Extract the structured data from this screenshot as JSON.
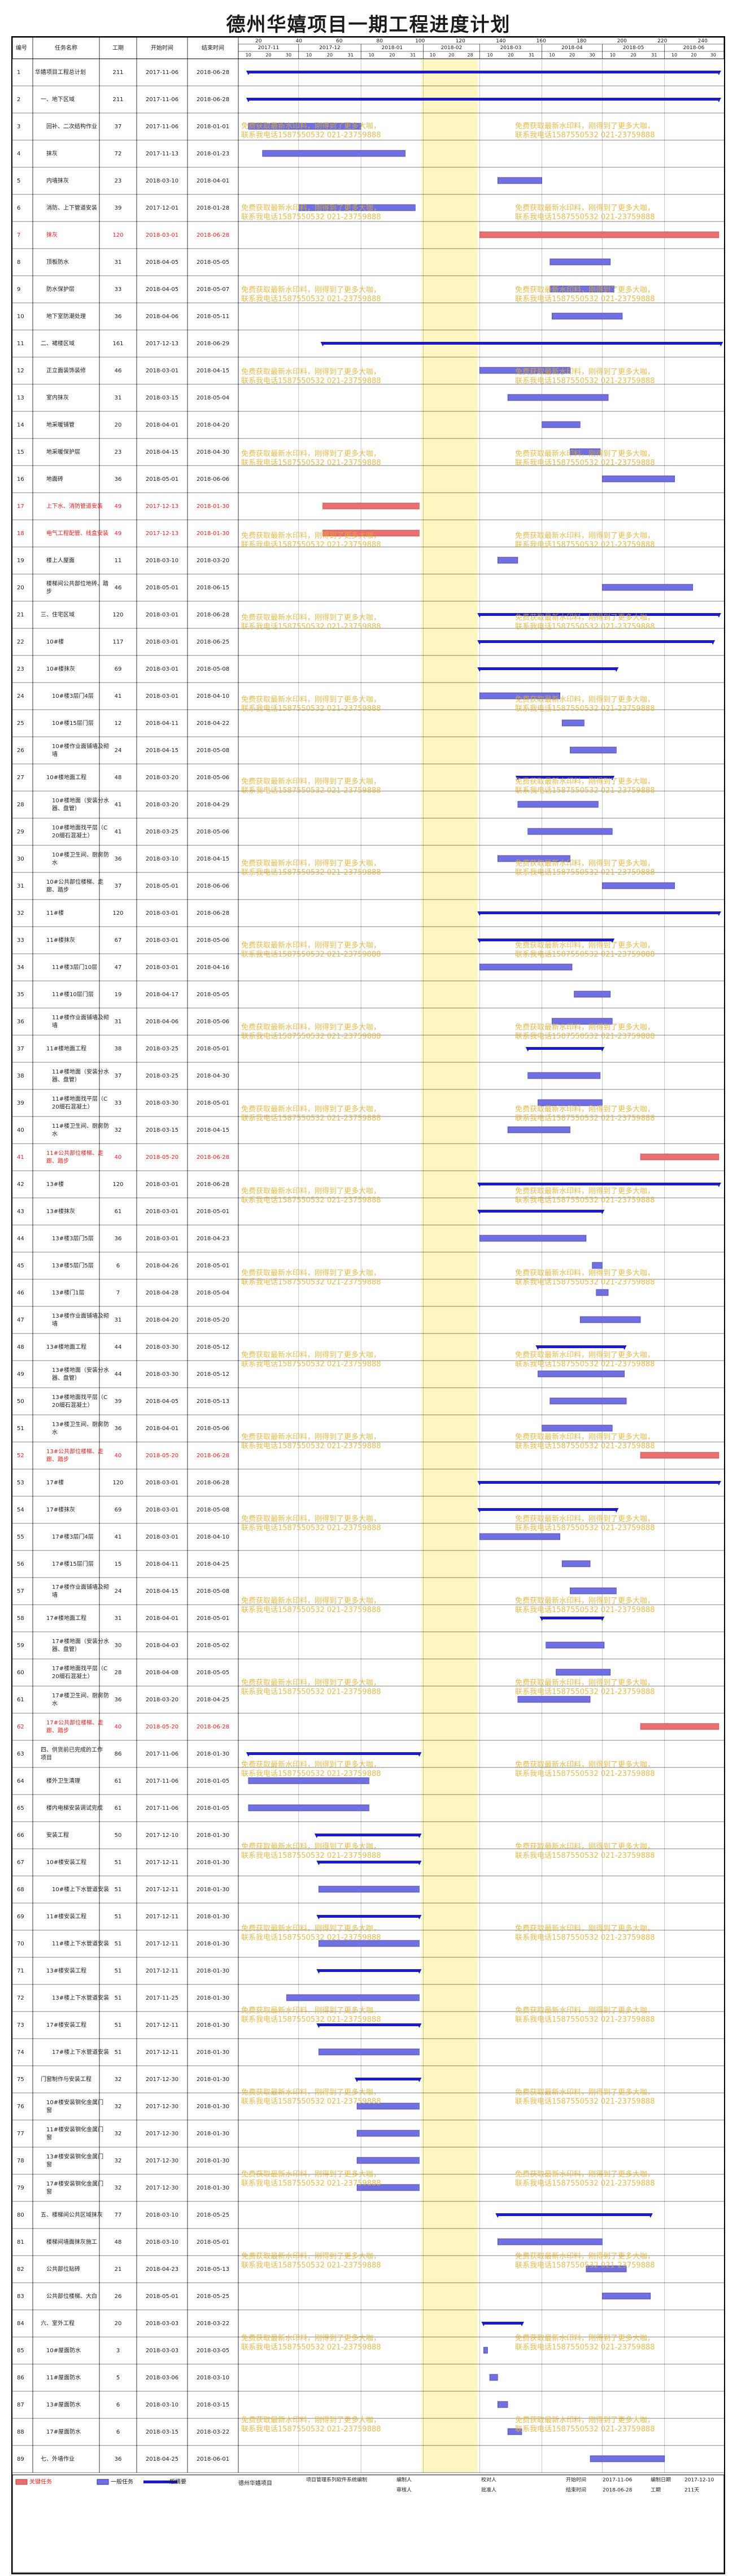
{
  "title": "德州华嬉项目一期工程进度计划",
  "headers": {
    "no": "编号",
    "name": "任务名称",
    "days": "工期",
    "start": "开始时间",
    "end": "结束时间"
  },
  "timescale": {
    "day_ticks": [
      "20",
      "40",
      "60",
      "80",
      "100",
      "120",
      "140",
      "160",
      "180",
      "200",
      "220",
      "240"
    ],
    "months": [
      "2017-11",
      "2017-12",
      "2018-01",
      "2018-02",
      "2018-03",
      "2018-04",
      "2018-05",
      "2018-06"
    ],
    "week_ticks": [
      "10",
      "20",
      "30",
      "10",
      "20",
      "31",
      "10",
      "20",
      "31",
      "10",
      "20",
      "28",
      "10",
      "20",
      "31",
      "10",
      "20",
      "30",
      "10",
      "20",
      "31",
      "10",
      "20",
      "30"
    ]
  },
  "watermark_text": [
    "免费获取最新水印料，刚得到了更多大咖，",
    "联系我电话1587550532 021-23759888"
  ],
  "colors": {
    "normal": "#7070e0",
    "critical": "#e87070",
    "summary": "#1a1acc",
    "holiday": "#fff6c2",
    "red_text": "#e02020"
  },
  "chart_data": {
    "type": "gantt",
    "title": "德州华嬉项目一期工程进度计划",
    "tasks": [
      {
        "no": "1",
        "name": "华嬉项目工程总计划",
        "days": "211",
        "start": "2017-11-06",
        "end": "2018-06-28",
        "kind": "summary",
        "level": 0
      },
      {
        "no": "2",
        "name": "一、地下区域",
        "days": "211",
        "start": "2017-11-06",
        "end": "2018-06-28",
        "kind": "summary",
        "level": 1
      },
      {
        "no": "3",
        "name": "回补、二次结构作业",
        "days": "37",
        "start": "2017-11-06",
        "end": "2018-01-01",
        "kind": "normal",
        "level": 2
      },
      {
        "no": "4",
        "name": "抹灰",
        "days": "72",
        "start": "2017-11-13",
        "end": "2018-01-23",
        "kind": "normal",
        "level": 2
      },
      {
        "no": "5",
        "name": "内墙抹灰",
        "days": "23",
        "start": "2018-03-10",
        "end": "2018-04-01",
        "kind": "normal",
        "level": 2
      },
      {
        "no": "6",
        "name": "消防、上下管道安装",
        "days": "39",
        "start": "2017-12-01",
        "end": "2018-01-28",
        "kind": "normal",
        "level": 2
      },
      {
        "no": "7",
        "name": "抹灰",
        "days": "120",
        "start": "2018-03-01",
        "end": "2018-06-28",
        "kind": "critical",
        "level": 2
      },
      {
        "no": "8",
        "name": "顶板防水",
        "days": "31",
        "start": "2018-04-05",
        "end": "2018-05-05",
        "kind": "normal",
        "level": 2
      },
      {
        "no": "9",
        "name": "防水保护层",
        "days": "33",
        "start": "2018-04-05",
        "end": "2018-05-07",
        "kind": "normal",
        "level": 2
      },
      {
        "no": "10",
        "name": "地下室防潮处理",
        "days": "36",
        "start": "2018-04-06",
        "end": "2018-05-11",
        "kind": "normal",
        "level": 2
      },
      {
        "no": "11",
        "name": "二、裙楼区域",
        "days": "161",
        "start": "2017-12-13",
        "end": "2018-06-29",
        "kind": "summary",
        "level": 1
      },
      {
        "no": "12",
        "name": "正立面装饰装修",
        "days": "46",
        "start": "2018-03-01",
        "end": "2018-04-15",
        "kind": "normal",
        "level": 2
      },
      {
        "no": "13",
        "name": "室内抹灰",
        "days": "31",
        "start": "2018-03-15",
        "end": "2018-05-04",
        "kind": "normal",
        "level": 2
      },
      {
        "no": "14",
        "name": "地采暖铺管",
        "days": "20",
        "start": "2018-04-01",
        "end": "2018-04-20",
        "kind": "normal",
        "level": 2
      },
      {
        "no": "15",
        "name": "地采暖保护层",
        "days": "23",
        "start": "2018-04-15",
        "end": "2018-04-30",
        "kind": "normal",
        "level": 2
      },
      {
        "no": "16",
        "name": "地面砖",
        "days": "36",
        "start": "2018-05-01",
        "end": "2018-06-06",
        "kind": "normal",
        "level": 2
      },
      {
        "no": "17",
        "name": "上下水、消防管道安装",
        "days": "49",
        "start": "2017-12-13",
        "end": "2018-01-30",
        "kind": "critical",
        "level": 2
      },
      {
        "no": "18",
        "name": "电气工程配管、线盒安装",
        "days": "49",
        "start": "2017-12-13",
        "end": "2018-01-30",
        "kind": "critical",
        "level": 2
      },
      {
        "no": "19",
        "name": "楼上人屋面",
        "days": "11",
        "start": "2018-03-10",
        "end": "2018-03-20",
        "kind": "normal",
        "level": 2
      },
      {
        "no": "20",
        "name": "楼梯间公共部位地砖、踏步",
        "days": "46",
        "start": "2018-05-01",
        "end": "2018-06-15",
        "kind": "normal",
        "level": 2
      },
      {
        "no": "21",
        "name": "三、住宅区域",
        "days": "120",
        "start": "2018-03-01",
        "end": "2018-06-28",
        "kind": "summary",
        "level": 1
      },
      {
        "no": "22",
        "name": "10#楼",
        "days": "117",
        "start": "2018-03-01",
        "end": "2018-06-25",
        "kind": "summary",
        "level": 2
      },
      {
        "no": "23",
        "name": "10#楼抹灰",
        "days": "69",
        "start": "2018-03-01",
        "end": "2018-05-08",
        "kind": "summary",
        "level": 2
      },
      {
        "no": "24",
        "name": "10#楼3层门4层",
        "days": "41",
        "start": "2018-03-01",
        "end": "2018-04-10",
        "kind": "normal",
        "level": 3
      },
      {
        "no": "25",
        "name": "10#楼15层门层",
        "days": "12",
        "start": "2018-04-11",
        "end": "2018-04-22",
        "kind": "normal",
        "level": 3
      },
      {
        "no": "26",
        "name": "10#楼作业面铺墙及砌墙",
        "days": "24",
        "start": "2018-04-15",
        "end": "2018-05-08",
        "kind": "normal",
        "level": 3
      },
      {
        "no": "27",
        "name": "10#楼地面工程",
        "days": "48",
        "start": "2018-03-20",
        "end": "2018-05-06",
        "kind": "summary",
        "level": 2
      },
      {
        "no": "28",
        "name": "10#楼地面（安装分水器、盘管）",
        "days": "41",
        "start": "2018-03-20",
        "end": "2018-04-29",
        "kind": "normal",
        "level": 3
      },
      {
        "no": "29",
        "name": "10#楼地面找平层（C20细石混凝土）",
        "days": "41",
        "start": "2018-03-25",
        "end": "2018-05-06",
        "kind": "normal",
        "level": 3
      },
      {
        "no": "30",
        "name": "10#楼卫生间、厨房防水",
        "days": "36",
        "start": "2018-03-10",
        "end": "2018-04-15",
        "kind": "normal",
        "level": 3
      },
      {
        "no": "31",
        "name": "10#公共部位楼梯、走廊、踏步",
        "days": "37",
        "start": "2018-05-01",
        "end": "2018-06-06",
        "kind": "normal",
        "level": 2
      },
      {
        "no": "32",
        "name": "11#楼",
        "days": "120",
        "start": "2018-03-01",
        "end": "2018-06-28",
        "kind": "summary",
        "level": 2
      },
      {
        "no": "33",
        "name": "11#楼抹灰",
        "days": "67",
        "start": "2018-03-01",
        "end": "2018-05-06",
        "kind": "summary",
        "level": 2
      },
      {
        "no": "34",
        "name": "11#楼3层门10层",
        "days": "47",
        "start": "2018-03-01",
        "end": "2018-04-16",
        "kind": "normal",
        "level": 3
      },
      {
        "no": "35",
        "name": "11#楼10层门层",
        "days": "19",
        "start": "2018-04-17",
        "end": "2018-05-05",
        "kind": "normal",
        "level": 3
      },
      {
        "no": "36",
        "name": "11#楼作业面铺墙及砌墙",
        "days": "31",
        "start": "2018-04-06",
        "end": "2018-05-06",
        "kind": "normal",
        "level": 3
      },
      {
        "no": "37",
        "name": "11#楼地面工程",
        "days": "38",
        "start": "2018-03-25",
        "end": "2018-05-01",
        "kind": "summary",
        "level": 2
      },
      {
        "no": "38",
        "name": "11#楼地面（安装分水器、盘管）",
        "days": "37",
        "start": "2018-03-25",
        "end": "2018-04-30",
        "kind": "normal",
        "level": 3
      },
      {
        "no": "39",
        "name": "11#楼地面找平层（C20细石混凝土）",
        "days": "33",
        "start": "2018-03-30",
        "end": "2018-05-01",
        "kind": "normal",
        "level": 3
      },
      {
        "no": "40",
        "name": "11#楼卫生间、厨房防水",
        "days": "32",
        "start": "2018-03-15",
        "end": "2018-04-15",
        "kind": "normal",
        "level": 3
      },
      {
        "no": "41",
        "name": "11#公共部位楼梯、走廊、踏步",
        "days": "40",
        "start": "2018-05-20",
        "end": "2018-06-28",
        "kind": "critical",
        "level": 2
      },
      {
        "no": "42",
        "name": "13#楼",
        "days": "120",
        "start": "2018-03-01",
        "end": "2018-06-28",
        "kind": "summary",
        "level": 2
      },
      {
        "no": "43",
        "name": "13#楼抹灰",
        "days": "61",
        "start": "2018-03-01",
        "end": "2018-05-01",
        "kind": "summary",
        "level": 2
      },
      {
        "no": "44",
        "name": "13#楼3层门5层",
        "days": "36",
        "start": "2018-03-01",
        "end": "2018-04-23",
        "kind": "normal",
        "level": 3
      },
      {
        "no": "45",
        "name": "13#楼5层门5层",
        "days": "6",
        "start": "2018-04-26",
        "end": "2018-05-01",
        "kind": "normal",
        "level": 3
      },
      {
        "no": "46",
        "name": "13#楼门1层",
        "days": "7",
        "start": "2018-04-28",
        "end": "2018-05-04",
        "kind": "normal",
        "level": 3
      },
      {
        "no": "47",
        "name": "13#楼作业面铺墙及砌墙",
        "days": "31",
        "start": "2018-04-20",
        "end": "2018-05-20",
        "kind": "normal",
        "level": 3
      },
      {
        "no": "48",
        "name": "13#楼地面工程",
        "days": "44",
        "start": "2018-03-30",
        "end": "2018-05-12",
        "kind": "summary",
        "level": 2
      },
      {
        "no": "49",
        "name": "13#楼地面（安装分水器、盘管）",
        "days": "44",
        "start": "2018-03-30",
        "end": "2018-05-12",
        "kind": "normal",
        "level": 3
      },
      {
        "no": "50",
        "name": "13#楼地面找平层（C20细石混凝土）",
        "days": "39",
        "start": "2018-04-05",
        "end": "2018-05-13",
        "kind": "normal",
        "level": 3
      },
      {
        "no": "51",
        "name": "13#楼卫生间、厨房防水",
        "days": "36",
        "start": "2018-04-01",
        "end": "2018-05-06",
        "kind": "normal",
        "level": 3
      },
      {
        "no": "52",
        "name": "13#公共部位楼梯、走廊、踏步",
        "days": "40",
        "start": "2018-05-20",
        "end": "2018-06-28",
        "kind": "critical",
        "level": 2
      },
      {
        "no": "53",
        "name": "17#楼",
        "days": "120",
        "start": "2018-03-01",
        "end": "2018-06-28",
        "kind": "summary",
        "level": 2
      },
      {
        "no": "54",
        "name": "17#楼抹灰",
        "days": "69",
        "start": "2018-03-01",
        "end": "2018-05-08",
        "kind": "summary",
        "level": 2
      },
      {
        "no": "55",
        "name": "17#楼3层门4层",
        "days": "41",
        "start": "2018-03-01",
        "end": "2018-04-10",
        "kind": "normal",
        "level": 3
      },
      {
        "no": "56",
        "name": "17#楼15层门层",
        "days": "15",
        "start": "2018-04-11",
        "end": "2018-04-25",
        "kind": "normal",
        "level": 3
      },
      {
        "no": "57",
        "name": "17#楼作业面铺墙及砌墙",
        "days": "24",
        "start": "2018-04-15",
        "end": "2018-05-08",
        "kind": "normal",
        "level": 3
      },
      {
        "no": "58",
        "name": "17#楼地面工程",
        "days": "31",
        "start": "2018-04-01",
        "end": "2018-05-01",
        "kind": "summary",
        "level": 2
      },
      {
        "no": "59",
        "name": "17#楼地面（安装分水器、盘管）",
        "days": "30",
        "start": "2018-04-03",
        "end": "2018-05-02",
        "kind": "normal",
        "level": 3
      },
      {
        "no": "60",
        "name": "17#楼地面找平层（C20细石混凝土）",
        "days": "28",
        "start": "2018-04-08",
        "end": "2018-05-05",
        "kind": "normal",
        "level": 3
      },
      {
        "no": "61",
        "name": "17#楼卫生间、厨房防水",
        "days": "36",
        "start": "2018-03-20",
        "end": "2018-04-25",
        "kind": "normal",
        "level": 3
      },
      {
        "no": "62",
        "name": "17#公共部位楼梯、走廊、踏步",
        "days": "40",
        "start": "2018-05-20",
        "end": "2018-06-28",
        "kind": "critical",
        "level": 2
      },
      {
        "no": "63",
        "name": "四、供货前已完成的工作项目",
        "days": "86",
        "start": "2017-11-06",
        "end": "2018-01-30",
        "kind": "summary",
        "level": 1
      },
      {
        "no": "64",
        "name": "楼外卫生清理",
        "days": "61",
        "start": "2017-11-06",
        "end": "2018-01-05",
        "kind": "normal",
        "level": 2
      },
      {
        "no": "65",
        "name": "楼内电梯安装调试完成",
        "days": "61",
        "start": "2017-11-06",
        "end": "2018-01-05",
        "kind": "normal",
        "level": 2
      },
      {
        "no": "66",
        "name": "安装工程",
        "days": "50",
        "start": "2017-12-10",
        "end": "2018-01-30",
        "kind": "summary",
        "level": 2
      },
      {
        "no": "67",
        "name": "10#楼安装工程",
        "days": "51",
        "start": "2017-12-11",
        "end": "2018-01-30",
        "kind": "summary",
        "level": 2
      },
      {
        "no": "68",
        "name": "10#楼上下水管道安装",
        "days": "51",
        "start": "2017-12-11",
        "end": "2018-01-30",
        "kind": "normal",
        "level": 3
      },
      {
        "no": "69",
        "name": "11#楼安装工程",
        "days": "51",
        "start": "2017-12-11",
        "end": "2018-01-30",
        "kind": "summary",
        "level": 2
      },
      {
        "no": "70",
        "name": "11#楼上下水管道安装",
        "days": "51",
        "start": "2017-12-11",
        "end": "2018-01-30",
        "kind": "normal",
        "level": 3
      },
      {
        "no": "71",
        "name": "13#楼安装工程",
        "days": "51",
        "start": "2017-12-11",
        "end": "2018-01-30",
        "kind": "summary",
        "level": 2
      },
      {
        "no": "72",
        "name": "13#楼上下水管道安装",
        "days": "51",
        "start": "2017-11-25",
        "end": "2018-01-30",
        "kind": "normal",
        "level": 3
      },
      {
        "no": "73",
        "name": "17#楼安装工程",
        "days": "51",
        "start": "2017-12-11",
        "end": "2018-01-30",
        "kind": "summary",
        "level": 2
      },
      {
        "no": "74",
        "name": "17#楼上下水管道安装",
        "days": "51",
        "start": "2017-12-11",
        "end": "2018-01-30",
        "kind": "normal",
        "level": 3
      },
      {
        "no": "75",
        "name": "门窗制作与安装工程",
        "days": "32",
        "start": "2017-12-30",
        "end": "2018-01-30",
        "kind": "summary",
        "level": 1
      },
      {
        "no": "76",
        "name": "10#楼安装钢化金属门窗",
        "days": "32",
        "start": "2017-12-30",
        "end": "2018-01-30",
        "kind": "normal",
        "level": 2
      },
      {
        "no": "77",
        "name": "11#楼安装钢化金属门窗",
        "days": "32",
        "start": "2017-12-30",
        "end": "2018-01-30",
        "kind": "normal",
        "level": 2
      },
      {
        "no": "78",
        "name": "13#楼安装钢化金属门窗",
        "days": "32",
        "start": "2017-12-30",
        "end": "2018-01-30",
        "kind": "normal",
        "level": 2
      },
      {
        "no": "79",
        "name": "17#楼安装钢化金属门窗",
        "days": "32",
        "start": "2017-12-30",
        "end": "2018-01-30",
        "kind": "normal",
        "level": 2
      },
      {
        "no": "80",
        "name": "五、楼梯间公共区域抹灰",
        "days": "77",
        "start": "2018-03-10",
        "end": "2018-05-25",
        "kind": "summary",
        "level": 1
      },
      {
        "no": "81",
        "name": "楼梯间墙面抹灰施工",
        "days": "48",
        "start": "2018-03-10",
        "end": "2018-05-01",
        "kind": "normal",
        "level": 2
      },
      {
        "no": "82",
        "name": "公共部位贴砖",
        "days": "21",
        "start": "2018-04-23",
        "end": "2018-05-13",
        "kind": "normal",
        "level": 2
      },
      {
        "no": "83",
        "name": "公共部位楼梯、大白",
        "days": "26",
        "start": "2018-05-01",
        "end": "2018-05-25",
        "kind": "normal",
        "level": 2
      },
      {
        "no": "84",
        "name": "六、室外工程",
        "days": "20",
        "start": "2018-03-03",
        "end": "2018-03-22",
        "kind": "summary",
        "level": 1
      },
      {
        "no": "85",
        "name": "10#屋面防水",
        "days": "3",
        "start": "2018-03-03",
        "end": "2018-03-05",
        "kind": "normal",
        "level": 2
      },
      {
        "no": "86",
        "name": "11#屋面防水",
        "days": "5",
        "start": "2018-03-06",
        "end": "2018-03-10",
        "kind": "normal",
        "level": 2
      },
      {
        "no": "87",
        "name": "13#屋面防水",
        "days": "6",
        "start": "2018-03-10",
        "end": "2018-03-15",
        "kind": "normal",
        "level": 2
      },
      {
        "no": "88",
        "name": "17#屋面防水",
        "days": "6",
        "start": "2018-03-15",
        "end": "2018-03-22",
        "kind": "normal",
        "level": 2
      },
      {
        "no": "89",
        "name": "七、外墙作业",
        "days": "36",
        "start": "2018-04-25",
        "end": "2018-06-01",
        "kind": "normal",
        "level": 1
      }
    ],
    "holiday_band": [
      "2018-01-31",
      "2018-02-28"
    ],
    "xlim": [
      "2017-11-01",
      "2018-06-30"
    ]
  },
  "legend": {
    "critical": "关键任务",
    "normal": "一般任务",
    "summary": "一般摘要"
  },
  "footer": {
    "unit_label": "德州华嬉项目",
    "software": "项目管理系列软件系统编制",
    "editor_label": "编制人",
    "editor": "",
    "reviewer_label": "审核人",
    "reviewer": "",
    "checker_label": "校对人",
    "checker": "",
    "approver_label": "批准人",
    "approver": "",
    "start_label": "开始时间",
    "start": "2017-11-06",
    "end_label": "结束时间",
    "end": "2018-06-28",
    "date_label": "编制日期",
    "date": "2017-12-10",
    "duration_label": "工期",
    "duration": "211天"
  }
}
